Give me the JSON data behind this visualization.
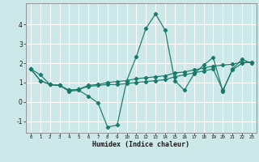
{
  "xlabel": "Humidex (Indice chaleur)",
  "background_color": "#cce8e8",
  "grid_color": "#ffffff",
  "line_color": "#1a7a6a",
  "xlim": [
    -0.5,
    23.5
  ],
  "ylim": [
    -1.6,
    5.1
  ],
  "yticks": [
    -1,
    0,
    1,
    2,
    3,
    4
  ],
  "xticks": [
    0,
    1,
    2,
    3,
    4,
    5,
    6,
    7,
    8,
    9,
    10,
    11,
    12,
    13,
    14,
    15,
    16,
    17,
    18,
    19,
    20,
    21,
    22,
    23
  ],
  "line1_x": [
    0,
    1,
    2,
    3,
    4,
    5,
    6,
    7,
    8,
    9,
    10,
    11,
    12,
    13,
    14,
    15,
    16,
    17,
    18,
    19,
    20,
    21,
    22,
    23
  ],
  "line1_y": [
    1.7,
    1.4,
    0.9,
    0.85,
    0.55,
    0.6,
    0.3,
    -0.05,
    -1.3,
    -1.2,
    1.1,
    2.35,
    3.8,
    4.55,
    3.7,
    1.1,
    0.6,
    1.45,
    1.9,
    2.3,
    0.55,
    1.7,
    2.2,
    2.0
  ],
  "line2_x": [
    0,
    1,
    2,
    3,
    4,
    5,
    6,
    7,
    8,
    9,
    10,
    11,
    12,
    13,
    14,
    15,
    16,
    17,
    18,
    19,
    20,
    21,
    22,
    23
  ],
  "line2_y": [
    1.7,
    1.1,
    0.9,
    0.85,
    0.6,
    0.65,
    0.85,
    0.9,
    1.0,
    1.05,
    1.1,
    1.2,
    1.25,
    1.3,
    1.35,
    1.5,
    1.55,
    1.65,
    1.75,
    1.85,
    1.9,
    1.95,
    2.05,
    2.05
  ],
  "line3_x": [
    0,
    1,
    2,
    3,
    4,
    5,
    6,
    7,
    8,
    9,
    10,
    11,
    12,
    13,
    14,
    15,
    16,
    17,
    18,
    19,
    20,
    21,
    22,
    23
  ],
  "line3_y": [
    1.7,
    1.1,
    0.9,
    0.85,
    0.6,
    0.65,
    0.8,
    0.85,
    0.9,
    0.9,
    0.95,
    1.0,
    1.05,
    1.1,
    1.15,
    1.3,
    1.4,
    1.5,
    1.6,
    1.7,
    0.6,
    1.65,
    2.0,
    2.05
  ],
  "xlabel_fontsize": 6,
  "tick_fontsize": 4.2,
  "ytick_fontsize": 5.5
}
